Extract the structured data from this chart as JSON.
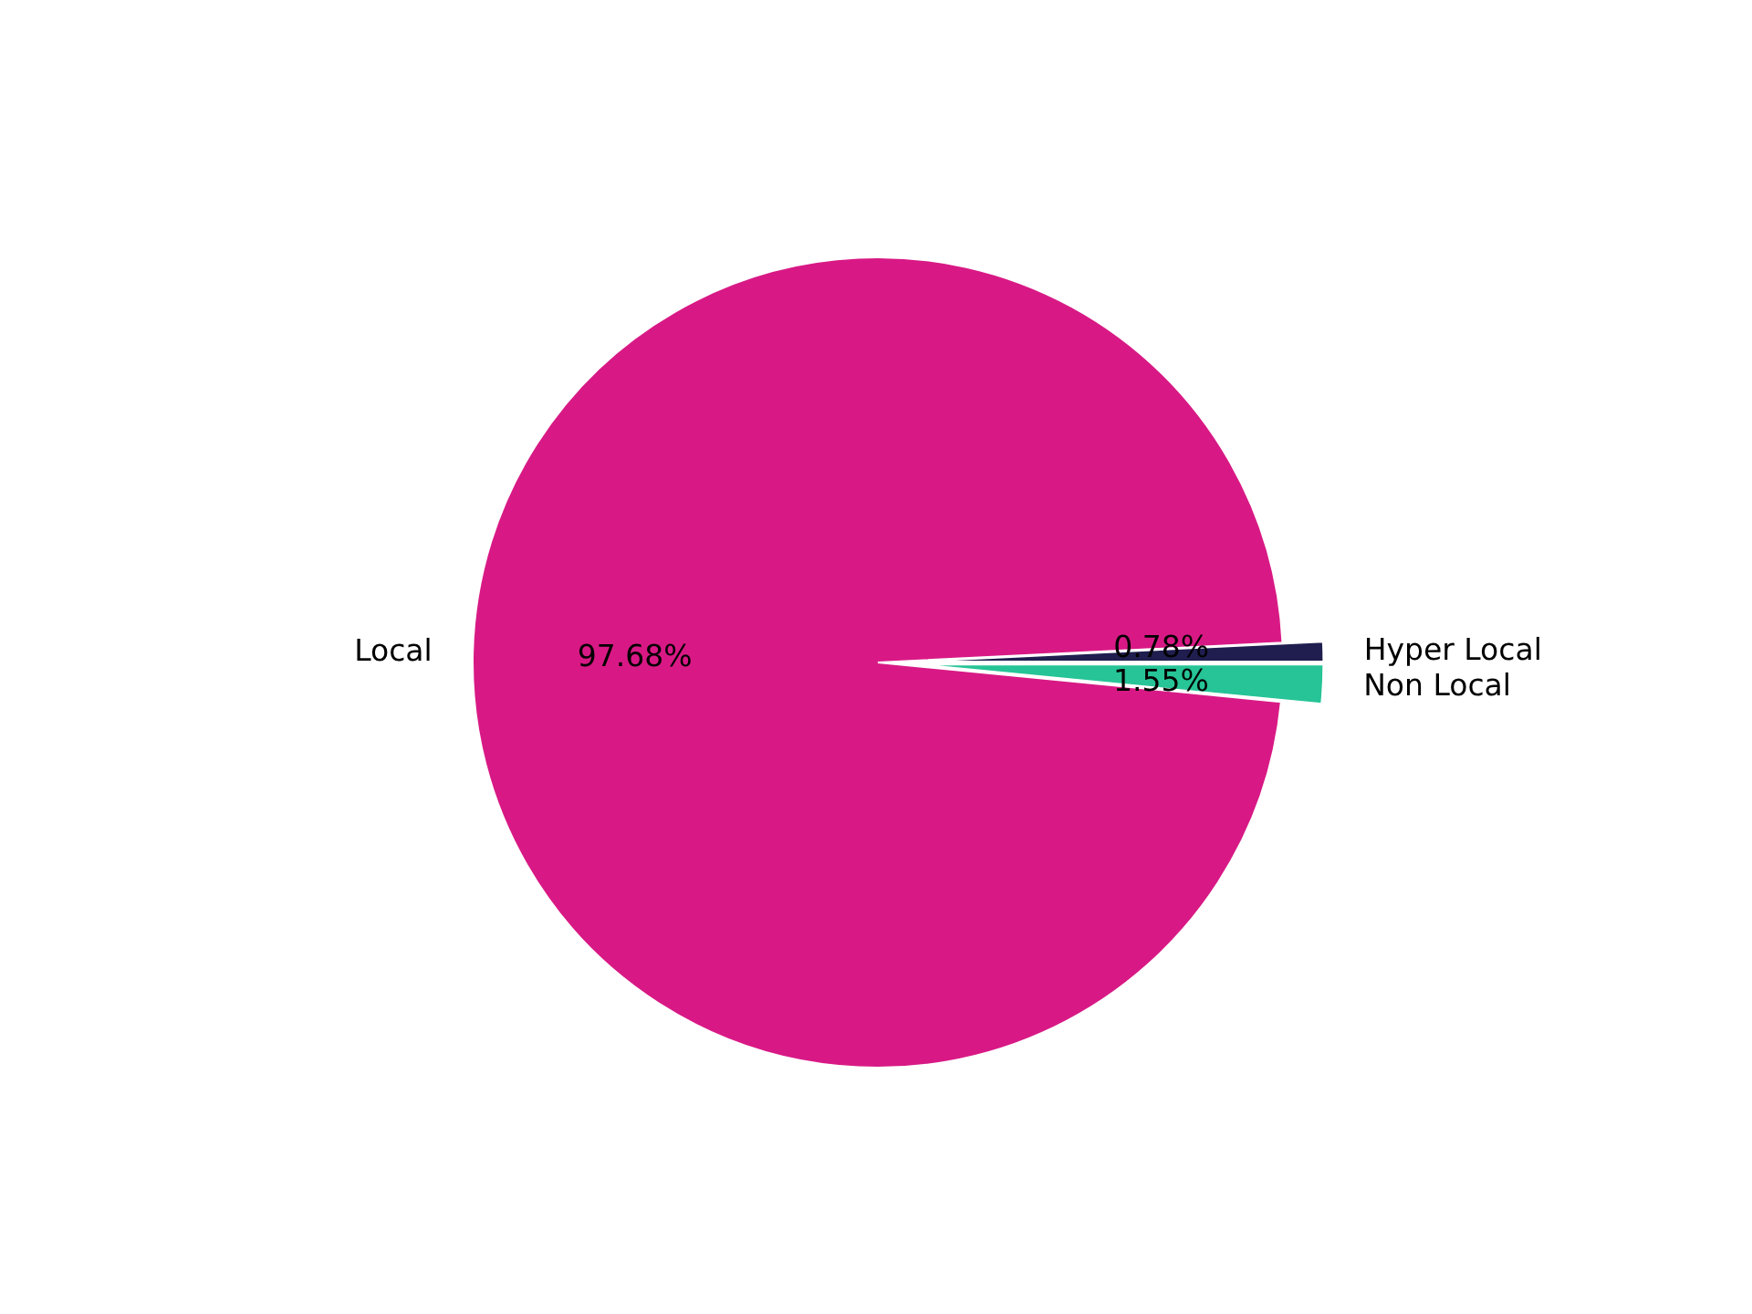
{
  "chart_data": {
    "type": "pie",
    "categories": [
      "Hyper Local",
      "Local",
      "Non Local"
    ],
    "values": [
      0.78,
      97.68,
      1.55
    ],
    "colors": [
      "#1f1e4f",
      "#d81985",
      "#26c496"
    ],
    "value_labels": [
      "0.78%",
      "97.68%",
      "1.55%"
    ]
  }
}
